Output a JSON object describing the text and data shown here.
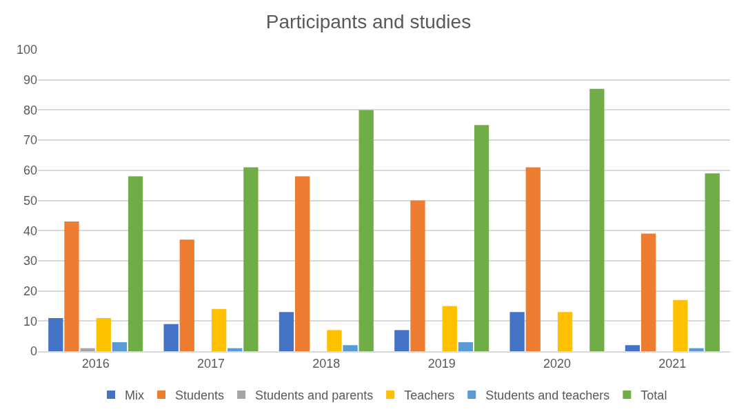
{
  "chart_data": {
    "type": "bar",
    "title": "Participants and studies",
    "categories": [
      "2016",
      "2017",
      "2018",
      "2019",
      "2020",
      "2021"
    ],
    "series": [
      {
        "name": "Mix",
        "color": "#4472c4",
        "values": [
          11,
          9,
          13,
          7,
          13,
          2
        ]
      },
      {
        "name": "Students",
        "color": "#ed7d31",
        "values": [
          43,
          37,
          58,
          50,
          61,
          39
        ]
      },
      {
        "name": "Students and parents",
        "color": "#a5a5a5",
        "values": [
          1,
          null,
          null,
          null,
          null,
          null
        ]
      },
      {
        "name": "Teachers",
        "color": "#ffc000",
        "values": [
          11,
          14,
          7,
          15,
          13,
          17
        ]
      },
      {
        "name": "Students and teachers",
        "color": "#5b9bd5",
        "values": [
          3,
          1,
          2,
          3,
          null,
          1
        ]
      },
      {
        "name": "Total",
        "color": "#70ad47",
        "values": [
          58,
          61,
          80,
          75,
          87,
          59
        ]
      }
    ],
    "ylim": [
      0,
      100
    ],
    "yticks": [
      0,
      10,
      20,
      30,
      40,
      50,
      60,
      70,
      80,
      90,
      100
    ],
    "grid": "y",
    "legend": "bottom"
  }
}
